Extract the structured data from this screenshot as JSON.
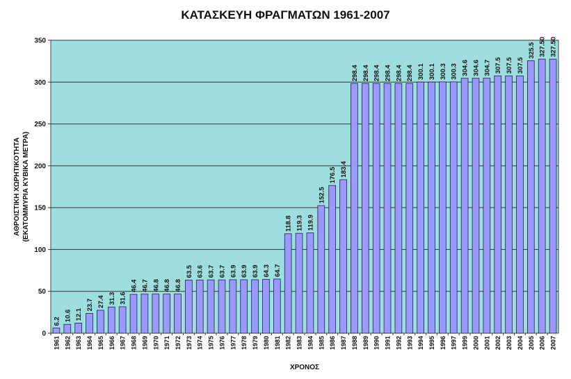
{
  "chart_data": {
    "type": "bar",
    "title": "ΚΑΤΑΣΚΕΥΗ ΦΡΑΓΜΑΤΩΝ 1961-2007",
    "xlabel": "ΧΡΟΝΟΣ",
    "ylabel_line1": "ΑΘΡΟΙΣΤΙΚΗ ΧΩΡΗΤΙΚΟΤΗΤΑ",
    "ylabel_line2": "(ΕΚΑΤΟΜΜΥΡΙΑ ΚΥΒΙΚΑ ΜΕΤΡΑ)",
    "ylim": [
      0,
      350
    ],
    "yticks": [
      "0",
      "50",
      "100",
      "150",
      "200",
      "250",
      "300",
      "350"
    ],
    "grid": true,
    "plot_background": "#9fdede",
    "bar_color": "#9999ff",
    "bar_edge_color": "#222244",
    "categories": [
      "1961",
      "1962",
      "1963",
      "1964",
      "1965",
      "1966",
      "1967",
      "1968",
      "1969",
      "1970",
      "1971",
      "1972",
      "1973",
      "1974",
      "1975",
      "1976",
      "1977",
      "1978",
      "1979",
      "1980",
      "1981",
      "1982",
      "1983",
      "1984",
      "1985",
      "1986",
      "1987",
      "1988",
      "1989",
      "1990",
      "1991",
      "1992",
      "1993",
      "1994",
      "1995",
      "1996",
      "1997",
      "1999",
      "2000",
      "2001",
      "2002",
      "2003",
      "2004",
      "2005",
      "2006",
      "2007"
    ],
    "values": [
      6.2,
      10.6,
      12.1,
      23.7,
      27.4,
      31.3,
      31.6,
      46.4,
      46.7,
      46.8,
      46.8,
      46.8,
      63.5,
      63.6,
      63.7,
      63.7,
      63.9,
      63.9,
      63.9,
      64.3,
      64.7,
      118.8,
      119.3,
      119.9,
      152.5,
      176.5,
      183.4,
      298.4,
      298.4,
      298.4,
      298.4,
      298.4,
      298.4,
      300.1,
      300.1,
      300.3,
      300.3,
      304.6,
      304.6,
      304.7,
      307.5,
      307.5,
      307.5,
      325.5,
      327.5,
      327.5
    ],
    "labels": [
      "6.2",
      "10.6",
      "12.1",
      "23.7",
      "27.4",
      "31.3",
      "31.6",
      "46.4",
      "46.7",
      "46.8",
      "46.8",
      "46.8",
      "63.5",
      "63.6",
      "63.7",
      "63.7",
      "63.9",
      "63.9",
      "63.9",
      "64.3",
      "64.7",
      "118.8",
      "119.3",
      "119.9",
      "152.5",
      "176.5",
      "183.4",
      "298.4",
      "298.4",
      "298.4",
      "298.4",
      "298.4",
      "298.4",
      "300.1",
      "300.1",
      "300.3",
      "300.3",
      "304.6",
      "304.6",
      "304.7",
      "307.5",
      "307.5",
      "307.5",
      "325.5",
      "327.50",
      "327.50"
    ]
  }
}
